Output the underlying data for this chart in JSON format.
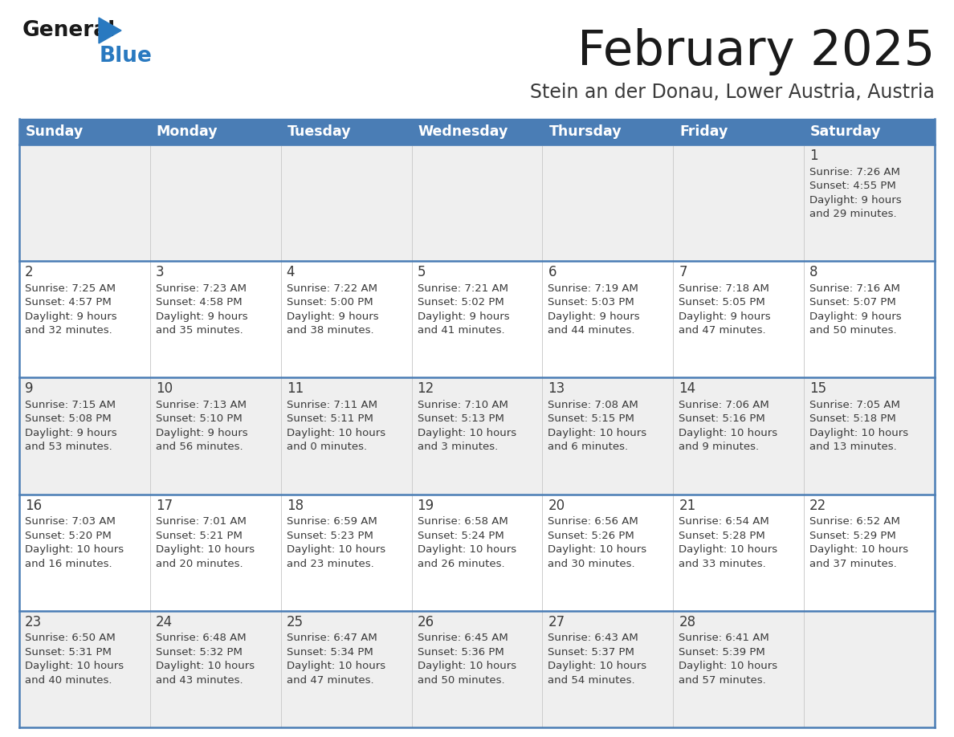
{
  "title": "February 2025",
  "subtitle": "Stein an der Donau, Lower Austria, Austria",
  "days_of_week": [
    "Sunday",
    "Monday",
    "Tuesday",
    "Wednesday",
    "Thursday",
    "Friday",
    "Saturday"
  ],
  "header_bg": "#4a7db5",
  "header_text": "#ffffff",
  "cell_bg_odd": "#efefef",
  "cell_bg_even": "#ffffff",
  "border_color": "#4a7db5",
  "text_color": "#3a3a3a",
  "day_num_color": "#3a3a3a",
  "title_color": "#1a1a1a",
  "subtitle_color": "#3a3a3a",
  "logo_general_color": "#1a1a1a",
  "logo_blue_color": "#2979c0",
  "calendar": [
    [
      {
        "day": null,
        "sunrise": null,
        "sunset": null,
        "daylight": null
      },
      {
        "day": null,
        "sunrise": null,
        "sunset": null,
        "daylight": null
      },
      {
        "day": null,
        "sunrise": null,
        "sunset": null,
        "daylight": null
      },
      {
        "day": null,
        "sunrise": null,
        "sunset": null,
        "daylight": null
      },
      {
        "day": null,
        "sunrise": null,
        "sunset": null,
        "daylight": null
      },
      {
        "day": null,
        "sunrise": null,
        "sunset": null,
        "daylight": null
      },
      {
        "day": 1,
        "sunrise": "7:26 AM",
        "sunset": "4:55 PM",
        "daylight": "9 hours\nand 29 minutes."
      }
    ],
    [
      {
        "day": 2,
        "sunrise": "7:25 AM",
        "sunset": "4:57 PM",
        "daylight": "9 hours\nand 32 minutes."
      },
      {
        "day": 3,
        "sunrise": "7:23 AM",
        "sunset": "4:58 PM",
        "daylight": "9 hours\nand 35 minutes."
      },
      {
        "day": 4,
        "sunrise": "7:22 AM",
        "sunset": "5:00 PM",
        "daylight": "9 hours\nand 38 minutes."
      },
      {
        "day": 5,
        "sunrise": "7:21 AM",
        "sunset": "5:02 PM",
        "daylight": "9 hours\nand 41 minutes."
      },
      {
        "day": 6,
        "sunrise": "7:19 AM",
        "sunset": "5:03 PM",
        "daylight": "9 hours\nand 44 minutes."
      },
      {
        "day": 7,
        "sunrise": "7:18 AM",
        "sunset": "5:05 PM",
        "daylight": "9 hours\nand 47 minutes."
      },
      {
        "day": 8,
        "sunrise": "7:16 AM",
        "sunset": "5:07 PM",
        "daylight": "9 hours\nand 50 minutes."
      }
    ],
    [
      {
        "day": 9,
        "sunrise": "7:15 AM",
        "sunset": "5:08 PM",
        "daylight": "9 hours\nand 53 minutes."
      },
      {
        "day": 10,
        "sunrise": "7:13 AM",
        "sunset": "5:10 PM",
        "daylight": "9 hours\nand 56 minutes."
      },
      {
        "day": 11,
        "sunrise": "7:11 AM",
        "sunset": "5:11 PM",
        "daylight": "10 hours\nand 0 minutes."
      },
      {
        "day": 12,
        "sunrise": "7:10 AM",
        "sunset": "5:13 PM",
        "daylight": "10 hours\nand 3 minutes."
      },
      {
        "day": 13,
        "sunrise": "7:08 AM",
        "sunset": "5:15 PM",
        "daylight": "10 hours\nand 6 minutes."
      },
      {
        "day": 14,
        "sunrise": "7:06 AM",
        "sunset": "5:16 PM",
        "daylight": "10 hours\nand 9 minutes."
      },
      {
        "day": 15,
        "sunrise": "7:05 AM",
        "sunset": "5:18 PM",
        "daylight": "10 hours\nand 13 minutes."
      }
    ],
    [
      {
        "day": 16,
        "sunrise": "7:03 AM",
        "sunset": "5:20 PM",
        "daylight": "10 hours\nand 16 minutes."
      },
      {
        "day": 17,
        "sunrise": "7:01 AM",
        "sunset": "5:21 PM",
        "daylight": "10 hours\nand 20 minutes."
      },
      {
        "day": 18,
        "sunrise": "6:59 AM",
        "sunset": "5:23 PM",
        "daylight": "10 hours\nand 23 minutes."
      },
      {
        "day": 19,
        "sunrise": "6:58 AM",
        "sunset": "5:24 PM",
        "daylight": "10 hours\nand 26 minutes."
      },
      {
        "day": 20,
        "sunrise": "6:56 AM",
        "sunset": "5:26 PM",
        "daylight": "10 hours\nand 30 minutes."
      },
      {
        "day": 21,
        "sunrise": "6:54 AM",
        "sunset": "5:28 PM",
        "daylight": "10 hours\nand 33 minutes."
      },
      {
        "day": 22,
        "sunrise": "6:52 AM",
        "sunset": "5:29 PM",
        "daylight": "10 hours\nand 37 minutes."
      }
    ],
    [
      {
        "day": 23,
        "sunrise": "6:50 AM",
        "sunset": "5:31 PM",
        "daylight": "10 hours\nand 40 minutes."
      },
      {
        "day": 24,
        "sunrise": "6:48 AM",
        "sunset": "5:32 PM",
        "daylight": "10 hours\nand 43 minutes."
      },
      {
        "day": 25,
        "sunrise": "6:47 AM",
        "sunset": "5:34 PM",
        "daylight": "10 hours\nand 47 minutes."
      },
      {
        "day": 26,
        "sunrise": "6:45 AM",
        "sunset": "5:36 PM",
        "daylight": "10 hours\nand 50 minutes."
      },
      {
        "day": 27,
        "sunrise": "6:43 AM",
        "sunset": "5:37 PM",
        "daylight": "10 hours\nand 54 minutes."
      },
      {
        "day": 28,
        "sunrise": "6:41 AM",
        "sunset": "5:39 PM",
        "daylight": "10 hours\nand 57 minutes."
      },
      {
        "day": null,
        "sunrise": null,
        "sunset": null,
        "daylight": null
      }
    ]
  ]
}
